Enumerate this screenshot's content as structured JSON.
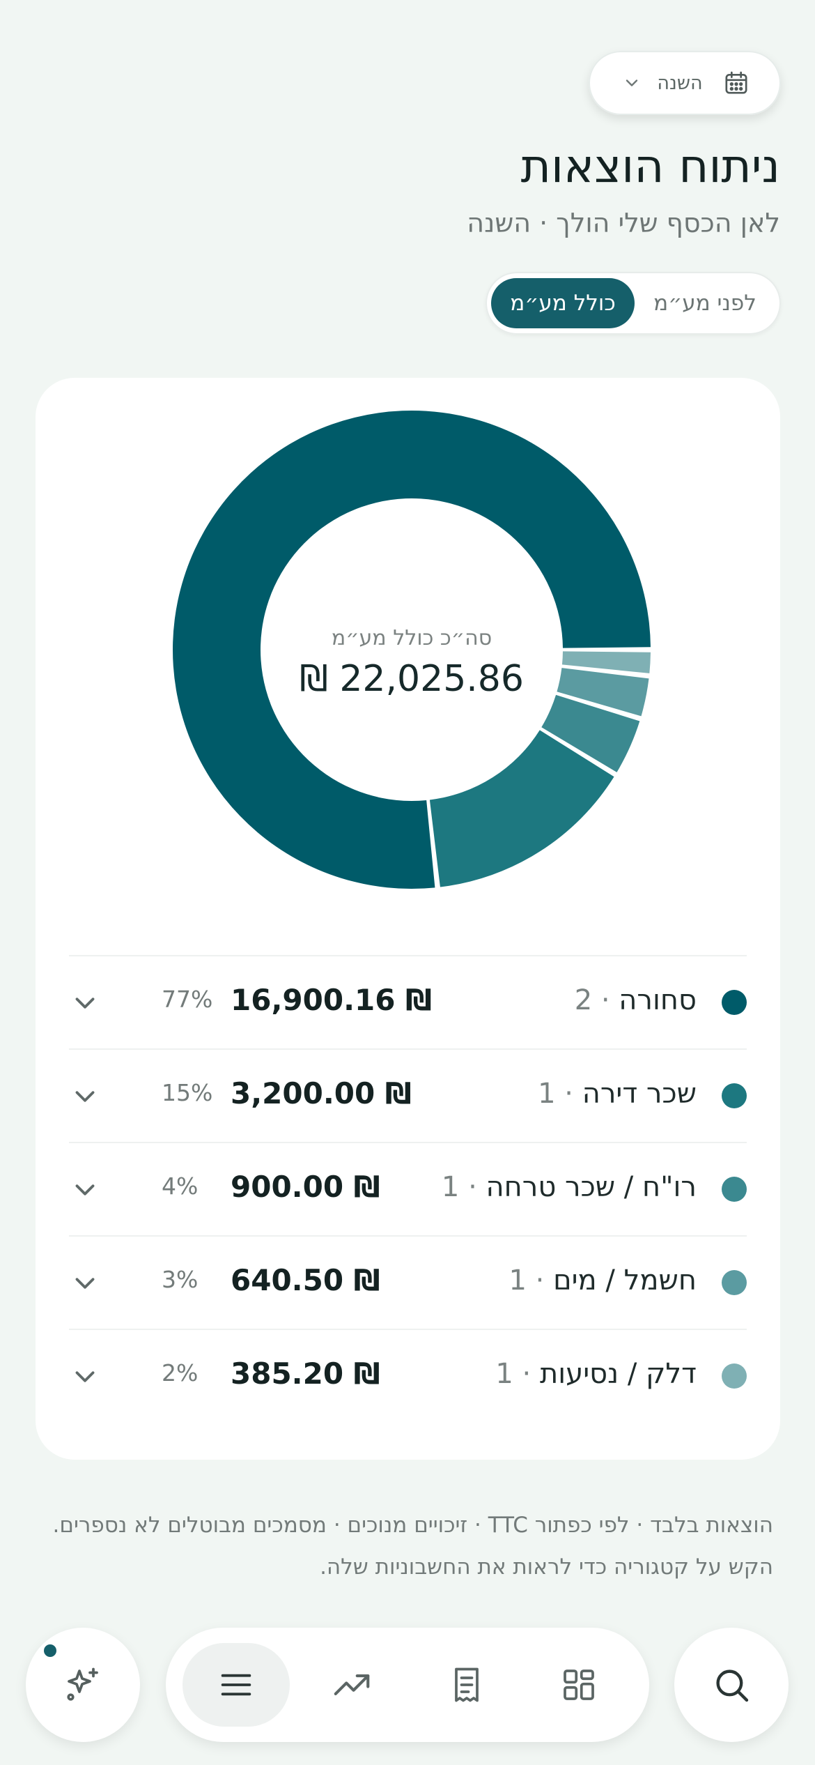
{
  "period_selector": {
    "label": "השנה",
    "icon": "calendar-icon",
    "chevron": "chevron-down-icon"
  },
  "header": {
    "title": "ניתוח הוצאות",
    "subtitle": "לאן הכסף שלי הולך · השנה"
  },
  "vat_toggle": {
    "options": [
      "כולל מע״מ",
      "לפני מע״מ"
    ],
    "selected": "כולל מע״מ"
  },
  "chart_data": {
    "type": "pie",
    "variant": "donut",
    "center_label": "סה״כ כולל מע״מ",
    "center_total": "22,025.86 ₪",
    "total": 22025.86,
    "categories": [
      "סחורה",
      "שכר דירה",
      "רו\"ח / שכר טרחה",
      "חשמל / מים",
      "דלק / נסיעות"
    ],
    "values": [
      16900.16,
      3200.0,
      900.0,
      640.5,
      385.2
    ],
    "colors": [
      "#005b69",
      "#1d7880",
      "#3b8990",
      "#5b9ba1",
      "#7fb0b4"
    ]
  },
  "categories": [
    {
      "name": "סחורה",
      "count": "2",
      "amount": "16,900.16",
      "currency": "₪",
      "percent": "77%",
      "color": "#005b69"
    },
    {
      "name": "שכר דירה",
      "count": "1",
      "amount": "3,200.00",
      "currency": "₪",
      "percent": "15%",
      "color": "#1d7880"
    },
    {
      "name": "רו\"ח / שכר טרחה",
      "count": "1",
      "amount": "900.00",
      "currency": "₪",
      "percent": "4%",
      "color": "#3b8990"
    },
    {
      "name": "חשמל / מים",
      "count": "1",
      "amount": "640.50",
      "currency": "₪",
      "percent": "3%",
      "color": "#5b9ba1"
    },
    {
      "name": "דלק / נסיעות",
      "count": "1",
      "amount": "385.20",
      "currency": "₪",
      "percent": "2%",
      "color": "#7fb0b4"
    }
  ],
  "footnote": {
    "line1": "הוצאות בלבד · לפי כפתור TTC · זיכויים מנוכים · מסמכים מבוטלים לא נספרים.",
    "line2": "הקש על קטגוריה כדי לראות את החשבוניות שלה."
  },
  "bottom_nav": {
    "assistant_icon": "sparkle-icon",
    "items": [
      "menu-icon",
      "trending-up-icon",
      "receipt-icon",
      "grid-icon"
    ],
    "active": "menu-icon",
    "search_icon": "search-icon"
  }
}
